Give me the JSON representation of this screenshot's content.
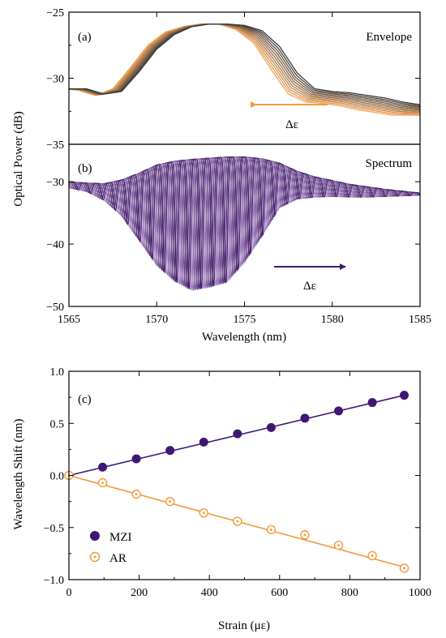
{
  "colors": {
    "envelope_dark": "#3a3a3a",
    "envelope_light": "#f7a55a",
    "spectrum_dark": "#3d1a5e",
    "spectrum_light": "#c8a6e6",
    "arrow_orange": "#f29a3c",
    "arrow_purple": "#3f1874",
    "mzi": "#3f1874",
    "ar": "#f29a3c"
  },
  "shared": {
    "ylabel": "Optical Power (dB)",
    "xlabel": "Wavelength (nm)",
    "xlim": [
      1565,
      1585
    ],
    "xticks": [
      "1565",
      "1570",
      "1575",
      "1580",
      "1585"
    ]
  },
  "chart_data": [
    {
      "type": "line",
      "panel": "(a)",
      "title": "Envelope",
      "annotation": "Δε",
      "arrow_direction": "left",
      "ylim": [
        -35,
        -25
      ],
      "yticks": [
        "−25",
        "−30",
        "−35"
      ],
      "series_count": 11,
      "x": [
        1565,
        1566,
        1567,
        1568,
        1569,
        1570,
        1571,
        1572,
        1573,
        1574,
        1575,
        1576,
        1577,
        1578,
        1579,
        1580,
        1581,
        1582,
        1583,
        1584,
        1585
      ],
      "y_dark": [
        -30.8,
        -30.8,
        -31.2,
        -31.0,
        -29.5,
        -27.8,
        -26.7,
        -26.1,
        -25.9,
        -25.9,
        -26.0,
        -26.4,
        -27.6,
        -29.6,
        -30.8,
        -31.0,
        -31.1,
        -31.3,
        -31.5,
        -31.8,
        -32.0
      ],
      "y_light": [
        -30.8,
        -30.9,
        -31.3,
        -30.8,
        -29.2,
        -27.5,
        -26.5,
        -26.1,
        -25.9,
        -25.9,
        -26.3,
        -27.3,
        -29.3,
        -31.2,
        -31.8,
        -31.9,
        -32.1,
        -32.4,
        -32.6,
        -32.8,
        -32.8
      ]
    },
    {
      "type": "line",
      "panel": "(b)",
      "title": "Spectrum",
      "annotation": "Δε",
      "arrow_direction": "right",
      "ylim": [
        -50,
        -24
      ],
      "yticks": [
        "−30",
        "−40",
        "−50"
      ],
      "series_count": 11,
      "env_x": [
        1565,
        1566,
        1567,
        1568,
        1569,
        1570,
        1571,
        1572,
        1573,
        1574,
        1575,
        1576,
        1577,
        1578,
        1579,
        1580,
        1581,
        1582,
        1583,
        1584,
        1585
      ],
      "env_top": [
        -30.0,
        -30.2,
        -30.3,
        -29.7,
        -28.6,
        -27.3,
        -26.7,
        -26.4,
        -26.2,
        -26.0,
        -26.0,
        -26.3,
        -27.0,
        -28.3,
        -29.2,
        -29.8,
        -30.4,
        -30.8,
        -31.2,
        -31.5,
        -31.8
      ],
      "env_bot": [
        -31.0,
        -31.6,
        -33.0,
        -35.5,
        -39.5,
        -43.5,
        -46.0,
        -47.5,
        -47.0,
        -46.2,
        -43.0,
        -38.8,
        -34.2,
        -32.8,
        -32.5,
        -32.4,
        -32.5,
        -32.5,
        -32.4,
        -32.3,
        -32.2
      ],
      "fringe_period_nm": 0.7,
      "shift_nm": 0.75
    },
    {
      "type": "scatter",
      "panel": "(c)",
      "xlabel": "Strain (με)",
      "ylabel": "Wavelength Shift (nm)",
      "xlim": [
        0,
        1000
      ],
      "ylim": [
        -1.0,
        1.0
      ],
      "xticks": [
        "0",
        "200",
        "400",
        "600",
        "800",
        "1000"
      ],
      "yticks": [
        "1.0",
        "0.5",
        "0.0",
        "−0.5",
        "−1.0"
      ],
      "legend_location": "lower-left",
      "series": [
        {
          "name": "MZI",
          "marker": "filled-circle",
          "x": [
            0,
            96,
            192,
            288,
            384,
            480,
            576,
            672,
            768,
            864,
            955
          ],
          "y": [
            0.0,
            0.08,
            0.16,
            0.24,
            0.32,
            0.4,
            0.46,
            0.55,
            0.62,
            0.7,
            0.77
          ],
          "fit": [
            [
              0,
              0.0
            ],
            [
              955,
              0.77
            ]
          ]
        },
        {
          "name": "AR",
          "marker": "open-circle-dot",
          "x": [
            0,
            96,
            192,
            288,
            384,
            480,
            576,
            672,
            768,
            864,
            955
          ],
          "y": [
            0.0,
            -0.07,
            -0.18,
            -0.25,
            -0.36,
            -0.44,
            -0.52,
            -0.57,
            -0.67,
            -0.77,
            -0.89
          ],
          "fit": [
            [
              0,
              0.0
            ],
            [
              955,
              -0.88
            ]
          ]
        }
      ]
    }
  ]
}
